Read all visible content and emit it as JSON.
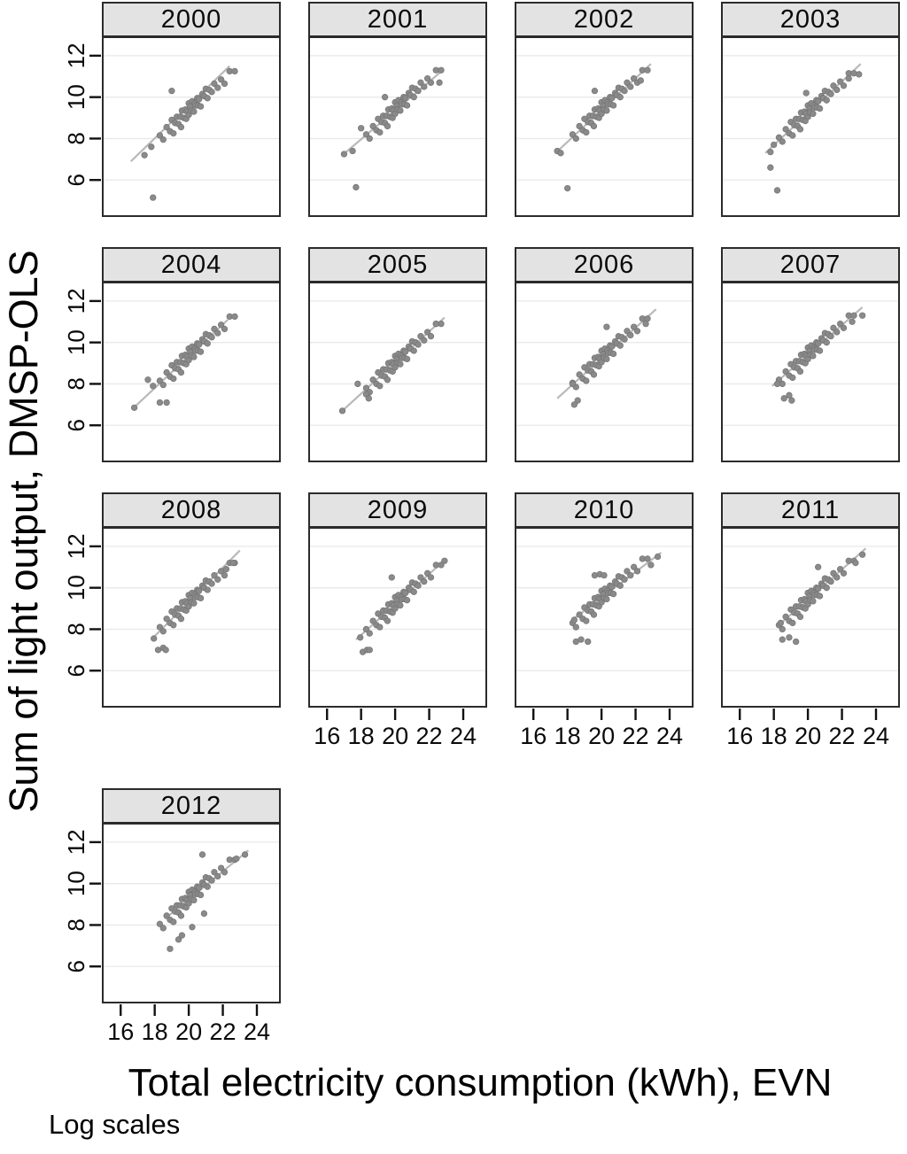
{
  "figure": {
    "xlabel": "Total electricity consumption (kWh), EVN",
    "ylabel": "Sum of light output, DMSP-OLS",
    "note": "Log scales"
  },
  "chart_data": {
    "type": "scatter",
    "title": "",
    "xlabel": "Total electricity consumption (kWh), EVN",
    "ylabel": "Sum of light output, DMSP-OLS",
    "note": "Log scales",
    "legend": "none",
    "grid": "horizontal gridlines only",
    "x_domain": [
      15.0,
      25.3
    ],
    "y_domain": [
      4.3,
      12.85
    ],
    "x_ticks": [
      16,
      18,
      20,
      22,
      24
    ],
    "y_ticks": [
      6,
      8,
      10,
      12
    ],
    "colors": {
      "dot": "#8a8a8a",
      "dot_edge": "#747474",
      "fit_line": "#b9b9b9",
      "grid_line": "#e9e9e9",
      "header_fill": "#e3e3e3",
      "border": "#2b2b2b",
      "text": "#000000"
    },
    "shared_cloud_points": [
      [
        18.3,
        8.1
      ],
      [
        18.5,
        7.9
      ],
      [
        18.7,
        8.5
      ],
      [
        18.9,
        8.3
      ],
      [
        19.0,
        8.85
      ],
      [
        19.1,
        8.2
      ],
      [
        19.2,
        8.7
      ],
      [
        19.3,
        9.0
      ],
      [
        19.4,
        8.65
      ],
      [
        19.5,
        9.0
      ],
      [
        19.55,
        8.5
      ],
      [
        19.6,
        9.3
      ],
      [
        19.7,
        8.95
      ],
      [
        19.8,
        9.35
      ],
      [
        19.85,
        8.9
      ],
      [
        19.9,
        9.25
      ],
      [
        20.0,
        9.65
      ],
      [
        20.0,
        9.1
      ],
      [
        20.1,
        9.5
      ],
      [
        20.15,
        9.3
      ],
      [
        20.2,
        9.75
      ],
      [
        20.3,
        9.25
      ],
      [
        20.35,
        9.65
      ],
      [
        20.4,
        9.55
      ],
      [
        20.5,
        9.9
      ],
      [
        20.55,
        9.55
      ],
      [
        20.6,
        9.85
      ],
      [
        20.7,
        9.5
      ],
      [
        20.8,
        10.1
      ],
      [
        20.9,
        10.0
      ],
      [
        21.0,
        10.35
      ],
      [
        21.1,
        9.9
      ],
      [
        21.2,
        10.3
      ],
      [
        21.35,
        10.2
      ],
      [
        21.5,
        10.6
      ],
      [
        21.7,
        10.4
      ],
      [
        21.9,
        10.8
      ],
      [
        22.1,
        10.6
      ],
      [
        22.4,
        11.2
      ],
      [
        22.7,
        11.2
      ]
    ],
    "facets": [
      {
        "year": "2000",
        "row": 0,
        "col": 0,
        "show_y_ticks": true,
        "show_x_ticks": false,
        "cloud_dy": 0.05,
        "fit_line": [
          [
            16.6,
            6.9
          ],
          [
            22.4,
            11.5
          ]
        ],
        "extra_points": [
          [
            17.9,
            5.15
          ],
          [
            17.4,
            7.2
          ],
          [
            17.8,
            7.6
          ],
          [
            19.0,
            10.3
          ]
        ]
      },
      {
        "year": "2001",
        "row": 0,
        "col": 1,
        "show_y_ticks": false,
        "show_x_ticks": false,
        "cloud_dy": 0.1,
        "fit_line": [
          [
            16.9,
            7.2
          ],
          [
            22.8,
            11.3
          ]
        ],
        "extra_points": [
          [
            17.7,
            5.65
          ],
          [
            17.0,
            7.25
          ],
          [
            17.5,
            7.4
          ],
          [
            18.0,
            8.5
          ],
          [
            19.4,
            10.0
          ],
          [
            22.6,
            10.7
          ]
        ]
      },
      {
        "year": "2002",
        "row": 0,
        "col": 2,
        "show_y_ticks": false,
        "show_x_ticks": false,
        "cloud_dy": 0.1,
        "fit_line": [
          [
            17.3,
            7.3
          ],
          [
            22.9,
            11.6
          ]
        ],
        "extra_points": [
          [
            18.0,
            5.6
          ],
          [
            17.4,
            7.4
          ],
          [
            17.6,
            7.3
          ],
          [
            19.6,
            10.3
          ],
          [
            22.3,
            10.8
          ]
        ]
      },
      {
        "year": "2003",
        "row": 0,
        "col": 3,
        "show_y_ticks": false,
        "show_x_ticks": false,
        "cloud_dy": -0.05,
        "fit_line": [
          [
            17.5,
            7.3
          ],
          [
            23.1,
            11.6
          ]
        ],
        "extra_points": [
          [
            18.2,
            5.5
          ],
          [
            17.8,
            6.6
          ],
          [
            18.0,
            7.7
          ],
          [
            17.8,
            7.35
          ],
          [
            19.9,
            10.2
          ],
          [
            23.0,
            11.1
          ],
          [
            22.4,
            10.9
          ]
        ]
      },
      {
        "year": "2004",
        "row": 1,
        "col": 0,
        "show_y_ticks": true,
        "show_x_ticks": false,
        "cloud_dy": 0.05,
        "fit_line": [
          [
            16.7,
            6.8
          ],
          [
            22.3,
            11.1
          ]
        ],
        "extra_points": [
          [
            16.8,
            6.85
          ],
          [
            18.3,
            7.1
          ],
          [
            18.7,
            7.1
          ],
          [
            17.9,
            7.9
          ],
          [
            17.6,
            8.2
          ]
        ]
      },
      {
        "year": "2005",
        "row": 1,
        "col": 1,
        "show_y_ticks": false,
        "show_x_ticks": false,
        "cloud_dy": -0.3,
        "fit_line": [
          [
            16.9,
            6.7
          ],
          [
            22.9,
            11.2
          ]
        ],
        "extra_points": [
          [
            16.9,
            6.7
          ],
          [
            18.3,
            7.5
          ],
          [
            18.45,
            7.3
          ],
          [
            17.8,
            8.0
          ],
          [
            22.4,
            10.9
          ]
        ]
      },
      {
        "year": "2006",
        "row": 1,
        "col": 2,
        "show_y_ticks": false,
        "show_x_ticks": false,
        "cloud_dy": -0.05,
        "fit_line": [
          [
            17.4,
            7.3
          ],
          [
            23.2,
            11.6
          ]
        ],
        "extra_points": [
          [
            18.4,
            7.0
          ],
          [
            18.6,
            7.2
          ],
          [
            18.3,
            8.0
          ],
          [
            20.3,
            10.75
          ],
          [
            22.6,
            10.9
          ]
        ]
      },
      {
        "year": "2007",
        "row": 1,
        "col": 3,
        "show_y_ticks": false,
        "show_x_ticks": false,
        "cloud_dy": 0.1,
        "fit_line": [
          [
            17.9,
            7.9
          ],
          [
            23.2,
            11.7
          ]
        ],
        "extra_points": [
          [
            18.6,
            7.3
          ],
          [
            18.9,
            7.45
          ],
          [
            19.05,
            7.2
          ],
          [
            18.2,
            8.0
          ],
          [
            23.2,
            11.3
          ],
          [
            22.6,
            11.0
          ]
        ]
      },
      {
        "year": "2008",
        "row": 2,
        "col": 0,
        "show_y_ticks": true,
        "show_x_ticks": false,
        "cloud_dy": 0,
        "fit_line": [
          [
            17.8,
            7.5
          ],
          [
            23.0,
            11.8
          ]
        ],
        "extra_points": [
          [
            18.2,
            7.0
          ],
          [
            18.5,
            7.1
          ],
          [
            18.65,
            7.0
          ],
          [
            17.95,
            7.55
          ],
          [
            22.6,
            11.2
          ],
          [
            22.2,
            10.9
          ]
        ]
      },
      {
        "year": "2009",
        "row": 2,
        "col": 1,
        "show_y_ticks": false,
        "show_x_ticks": true,
        "cloud_dy": -0.1,
        "fit_line": [
          [
            17.7,
            7.5
          ],
          [
            23.0,
            11.4
          ]
        ],
        "extra_points": [
          [
            18.1,
            6.9
          ],
          [
            18.35,
            7.0
          ],
          [
            18.5,
            7.0
          ],
          [
            17.95,
            7.6
          ],
          [
            19.8,
            10.5
          ],
          [
            22.9,
            11.3
          ]
        ]
      },
      {
        "year": "2010",
        "row": 2,
        "col": 2,
        "show_y_ticks": false,
        "show_x_ticks": true,
        "cloud_dy": 0.2,
        "fit_line": [
          [
            18.2,
            8.4
          ],
          [
            23.5,
            11.7
          ]
        ],
        "extra_points": [
          [
            18.5,
            7.4
          ],
          [
            18.8,
            7.5
          ],
          [
            19.2,
            7.4
          ],
          [
            18.4,
            8.45
          ],
          [
            19.6,
            10.6
          ],
          [
            19.9,
            10.65
          ],
          [
            20.15,
            10.6
          ],
          [
            23.3,
            11.5
          ],
          [
            22.9,
            11.1
          ]
        ]
      },
      {
        "year": "2011",
        "row": 2,
        "col": 3,
        "show_y_ticks": false,
        "show_x_ticks": true,
        "cloud_dy": 0.1,
        "fit_line": [
          [
            18.3,
            8.2
          ],
          [
            23.4,
            11.9
          ]
        ],
        "extra_points": [
          [
            18.5,
            7.5
          ],
          [
            18.9,
            7.6
          ],
          [
            19.3,
            7.4
          ],
          [
            18.4,
            8.3
          ],
          [
            20.6,
            11.0
          ],
          [
            23.2,
            11.6
          ],
          [
            22.8,
            11.2
          ]
        ]
      },
      {
        "year": "2012",
        "row": 3,
        "col": 0,
        "show_y_ticks": true,
        "show_x_ticks": true,
        "cloud_dy": -0.05,
        "fit_line": [
          [
            18.6,
            8.3
          ],
          [
            23.5,
            11.6
          ]
        ],
        "extra_points": [
          [
            18.9,
            6.85
          ],
          [
            19.4,
            7.3
          ],
          [
            19.6,
            7.5
          ],
          [
            20.2,
            7.9
          ],
          [
            20.9,
            8.55
          ],
          [
            20.8,
            11.4
          ],
          [
            23.3,
            11.4
          ],
          [
            22.8,
            11.2
          ]
        ]
      }
    ]
  }
}
